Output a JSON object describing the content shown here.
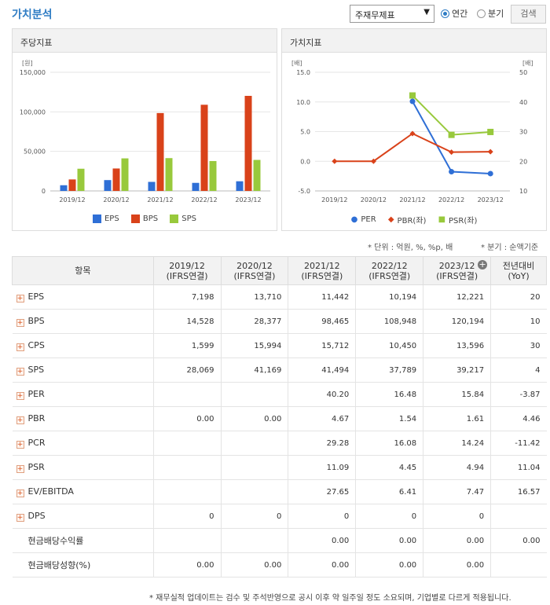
{
  "header": {
    "title": "가치분석",
    "select_value": "주재무제표",
    "radio_annual": "연간",
    "radio_quarter": "분기",
    "search_label": "검색"
  },
  "chart_left": {
    "title": "주당지표",
    "unit": "[원]",
    "legend": [
      "EPS",
      "BPS",
      "SPS"
    ]
  },
  "chart_right": {
    "title": "가치지표",
    "unit_left": "[배]",
    "unit_right": "[배]",
    "legend": [
      "PER",
      "PBR(좌)",
      "PSR(좌)"
    ]
  },
  "colors": {
    "eps": "#2f6fd6",
    "bps": "#d9421a",
    "sps": "#98c93c",
    "accent": "#2e7cc4"
  },
  "chart_data": [
    {
      "type": "bar",
      "title": "주당지표",
      "ylabel": "[원]",
      "categories": [
        "2019/12",
        "2020/12",
        "2021/12",
        "2022/12",
        "2023/12"
      ],
      "y_ticks": [
        "150,000",
        "100,000",
        "50,000",
        "0"
      ],
      "ylim": [
        0,
        150000
      ],
      "series": [
        {
          "name": "EPS",
          "values": [
            7198,
            13710,
            11442,
            10194,
            12221
          ]
        },
        {
          "name": "BPS",
          "values": [
            14528,
            28377,
            98465,
            108948,
            120194
          ]
        },
        {
          "name": "SPS",
          "values": [
            28069,
            41169,
            41494,
            37789,
            39217
          ]
        }
      ],
      "legend_position": "bottom"
    },
    {
      "type": "line",
      "title": "가치지표",
      "categories": [
        "2019/12",
        "2020/12",
        "2021/12",
        "2022/12",
        "2023/12"
      ],
      "left_ticks": [
        "15.0",
        "10.0",
        "5.0",
        "0.0",
        "-5.0"
      ],
      "right_ticks": [
        "50",
        "40",
        "30",
        "20",
        "10"
      ],
      "ylim_left": [
        -5,
        15
      ],
      "ylim_right": [
        10,
        50
      ],
      "series": [
        {
          "name": "PER",
          "axis": "right",
          "values": [
            null,
            null,
            40.2,
            16.48,
            15.84
          ]
        },
        {
          "name": "PBR(좌)",
          "axis": "left",
          "values": [
            0.0,
            0.0,
            4.67,
            1.54,
            1.61
          ]
        },
        {
          "name": "PSR(좌)",
          "axis": "left",
          "values": [
            null,
            null,
            11.09,
            4.45,
            4.94
          ]
        }
      ],
      "legend_position": "bottom"
    }
  ],
  "notes": {
    "unit": "* 단위 : 억원, %, %p, 배",
    "period": "* 분기 : 순액기준"
  },
  "table": {
    "headers": [
      [
        "항목",
        ""
      ],
      [
        "2019/12",
        "(IFRS연결)"
      ],
      [
        "2020/12",
        "(IFRS연결)"
      ],
      [
        "2021/12",
        "(IFRS연결)"
      ],
      [
        "2022/12",
        "(IFRS연결)"
      ],
      [
        "2023/12",
        "(IFRS연결)"
      ],
      [
        "전년대비",
        "(YoY)"
      ]
    ],
    "rows": [
      {
        "label": "EPS",
        "expand": true,
        "values": [
          "7,198",
          "13,710",
          "11,442",
          "10,194",
          "12,221",
          "20"
        ]
      },
      {
        "label": "BPS",
        "expand": true,
        "values": [
          "14,528",
          "28,377",
          "98,465",
          "108,948",
          "120,194",
          "10"
        ]
      },
      {
        "label": "CPS",
        "expand": true,
        "values": [
          "1,599",
          "15,994",
          "15,712",
          "10,450",
          "13,596",
          "30"
        ]
      },
      {
        "label": "SPS",
        "expand": true,
        "values": [
          "28,069",
          "41,169",
          "41,494",
          "37,789",
          "39,217",
          "4"
        ]
      },
      {
        "label": "PER",
        "expand": true,
        "values": [
          "",
          "",
          "40.20",
          "16.48",
          "15.84",
          "-3.87"
        ]
      },
      {
        "label": "PBR",
        "expand": true,
        "values": [
          "0.00",
          "0.00",
          "4.67",
          "1.54",
          "1.61",
          "4.46"
        ]
      },
      {
        "label": "PCR",
        "expand": true,
        "values": [
          "",
          "",
          "29.28",
          "16.08",
          "14.24",
          "-11.42"
        ]
      },
      {
        "label": "PSR",
        "expand": true,
        "values": [
          "",
          "",
          "11.09",
          "4.45",
          "4.94",
          "11.04"
        ]
      },
      {
        "label": "EV/EBITDA",
        "expand": true,
        "values": [
          "",
          "",
          "27.65",
          "6.41",
          "7.47",
          "16.57"
        ]
      },
      {
        "label": "DPS",
        "expand": true,
        "values": [
          "0",
          "0",
          "0",
          "0",
          "0",
          ""
        ]
      },
      {
        "label": "현금배당수익률",
        "expand": false,
        "values": [
          "",
          "",
          "0.00",
          "0.00",
          "0.00",
          "0.00"
        ]
      },
      {
        "label": "현금배당성향(%)",
        "expand": false,
        "values": [
          "0.00",
          "0.00",
          "0.00",
          "0.00",
          "0.00",
          ""
        ]
      }
    ]
  },
  "footnote": "* 재무실적 업데이트는 검수 및 주석반영으로 공시 이후 약 일주일 정도 소요되며, 기업별로 다르게 적용됩니다."
}
